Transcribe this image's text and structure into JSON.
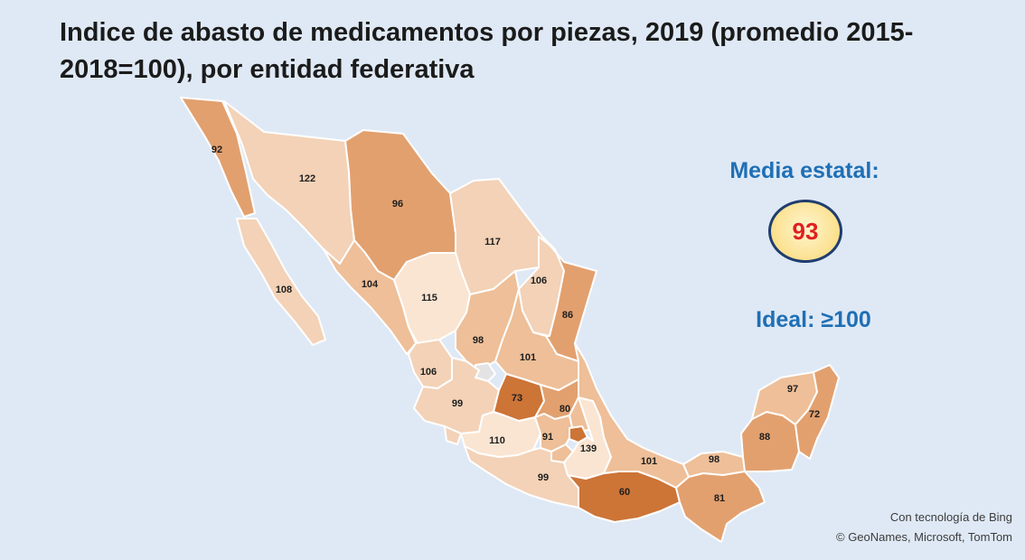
{
  "title": "Indice de abasto de medicamentos por piezas, 2019 (promedio 2015-2018=100), por entidad federativa",
  "media": {
    "label": "Media estatal:",
    "value": "93"
  },
  "ideal": "Ideal: ≥100",
  "credits": {
    "line1": "Con tecnología de Bing",
    "line2": "© GeoNames, Microsoft, TomTom"
  },
  "colors": {
    "background": "#dfe9f5",
    "dark": "#cd7437",
    "medium": "#e2a06e",
    "light": "#eebf98",
    "lighter": "#f3d2b7",
    "lightest": "#fae5d2",
    "no_data": "#e3e3e3",
    "circle_border": "#1f3d6e",
    "media_value": "#e02020",
    "accent_text": "#1f6fb5"
  },
  "states": [
    {
      "name": "Baja California",
      "value": "92"
    },
    {
      "name": "Baja California Sur",
      "value": "108"
    },
    {
      "name": "Sonora",
      "value": "122"
    },
    {
      "name": "Chihuahua",
      "value": "96"
    },
    {
      "name": "Coahuila",
      "value": "117"
    },
    {
      "name": "Nuevo León",
      "value": "106"
    },
    {
      "name": "Tamaulipas",
      "value": "86"
    },
    {
      "name": "Sinaloa",
      "value": "104"
    },
    {
      "name": "Durango",
      "value": "115"
    },
    {
      "name": "Zacatecas",
      "value": "98"
    },
    {
      "name": "San Luis Potosí",
      "value": "101"
    },
    {
      "name": "Nayarit",
      "value": "106"
    },
    {
      "name": "Jalisco",
      "value": "99"
    },
    {
      "name": "Guanajuato",
      "value": "73"
    },
    {
      "name": "Querétaro",
      "value": "80"
    },
    {
      "name": "Michoacán",
      "value": "110"
    },
    {
      "name": "Estado de México",
      "value": "91"
    },
    {
      "name": "Ciudad de México",
      "value": ""
    },
    {
      "name": "Puebla",
      "value": "139"
    },
    {
      "name": "Guerrero",
      "value": "99"
    },
    {
      "name": "Oaxaca",
      "value": "60"
    },
    {
      "name": "Veracruz",
      "value": "101"
    },
    {
      "name": "Tabasco",
      "value": "98"
    },
    {
      "name": "Chiapas",
      "value": "81"
    },
    {
      "name": "Campeche",
      "value": "88"
    },
    {
      "name": "Yucatán",
      "value": "97"
    },
    {
      "name": "Quintana Roo",
      "value": "72"
    },
    {
      "name": "Aguascalientes",
      "value": ""
    },
    {
      "name": "Hidalgo",
      "value": ""
    },
    {
      "name": "Tlaxcala",
      "value": ""
    },
    {
      "name": "Morelos",
      "value": ""
    },
    {
      "name": "Colima",
      "value": ""
    }
  ]
}
